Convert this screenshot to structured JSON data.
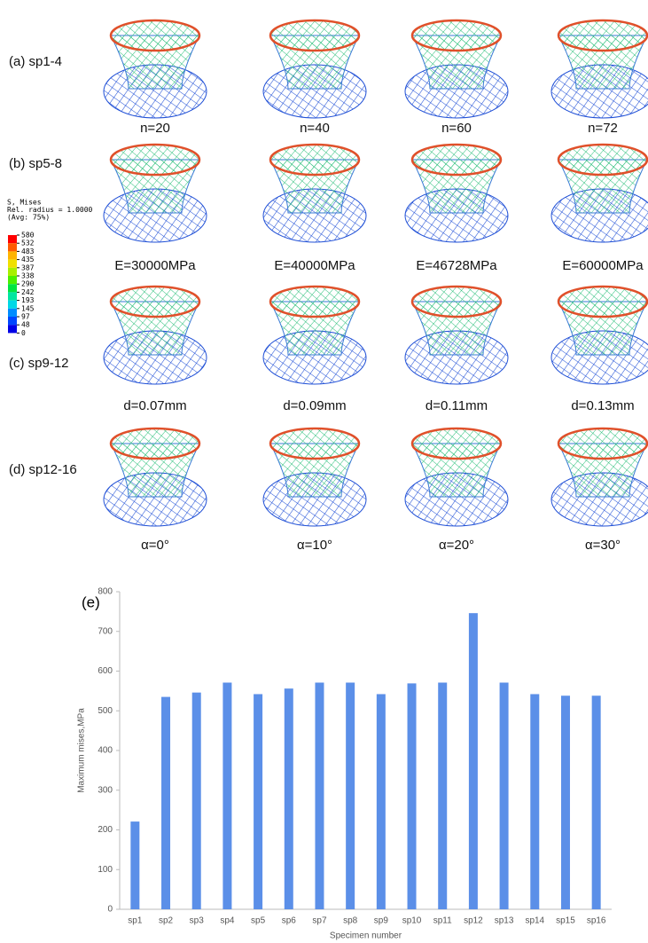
{
  "rows": [
    {
      "label": "(a) sp1-4",
      "captions": [
        "n=20",
        "n=40",
        "n=60",
        "n=72"
      ]
    },
    {
      "label": "(b) sp5-8",
      "captions": [
        "E=30000MPa",
        "E=40000MPa",
        "E=46728MPa",
        "E=60000MPa"
      ]
    },
    {
      "label": "(c) sp9-12",
      "captions": [
        "d=0.07mm",
        "d=0.09mm",
        "d=0.11mm",
        "d=0.13mm"
      ]
    },
    {
      "label": "(d) sp12-16",
      "captions": [
        "α=0°",
        "α=10°",
        "α=20°",
        "α=30°"
      ]
    }
  ],
  "legend": {
    "title": [
      "S, Mises",
      "Rel. radius = 1.0000",
      "(Avg: 75%)"
    ],
    "ticks": [
      580,
      532,
      483,
      435,
      387,
      338,
      290,
      242,
      193,
      145,
      97,
      48,
      0
    ]
  },
  "chart_data": {
    "type": "bar",
    "panel_label": "(e)",
    "xlabel": "Specimen number",
    "ylabel": "Maximum mises,MPa",
    "categories": [
      "sp1",
      "sp2",
      "sp3",
      "sp4",
      "sp5",
      "sp6",
      "sp7",
      "sp8",
      "sp9",
      "sp10",
      "sp11",
      "sp12",
      "sp13",
      "sp14",
      "sp15",
      "sp16"
    ],
    "values": [
      221,
      535,
      546,
      571,
      542,
      556,
      571,
      571,
      542,
      569,
      571,
      746,
      571,
      542,
      538,
      538
    ],
    "color": "#5b8fe8",
    "ylim": [
      0,
      800
    ],
    "yticks": [
      0,
      100,
      200,
      300,
      400,
      500,
      600,
      700,
      800
    ]
  }
}
